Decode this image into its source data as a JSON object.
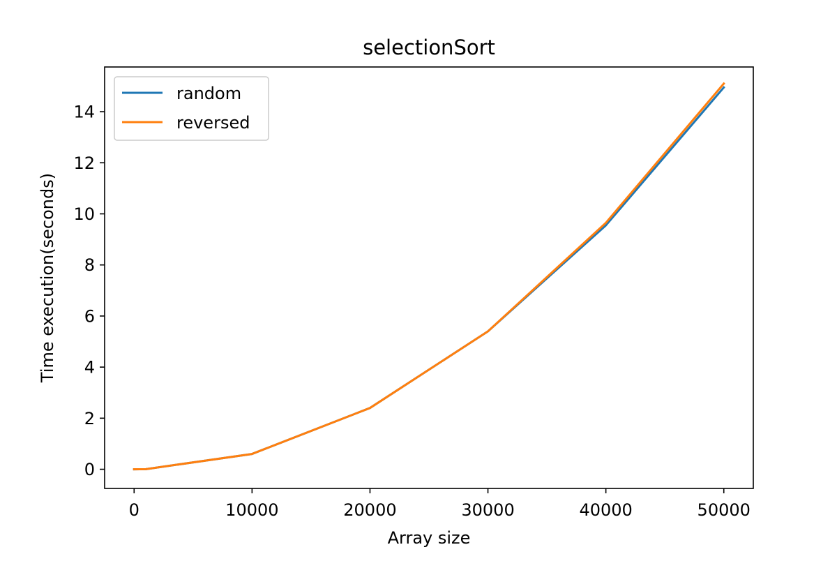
{
  "chart_data": {
    "type": "line",
    "title": "selectionSort",
    "xlabel": "Array size",
    "ylabel": "Time execution(seconds)",
    "xlim": [
      -2500,
      52500
    ],
    "ylim": [
      -0.75,
      15.75
    ],
    "xticks": [
      0,
      10000,
      20000,
      30000,
      40000,
      50000
    ],
    "yticks": [
      0,
      2,
      4,
      6,
      8,
      10,
      12,
      14
    ],
    "x": [
      0,
      1000,
      10000,
      20000,
      30000,
      40000,
      50000
    ],
    "series": [
      {
        "name": "random",
        "color": "#1f77b4",
        "values": [
          0.0,
          0.006,
          0.6,
          2.4,
          5.4,
          9.55,
          14.95
        ]
      },
      {
        "name": "reversed",
        "color": "#ff7f0e",
        "values": [
          0.0,
          0.006,
          0.6,
          2.4,
          5.4,
          9.65,
          15.1
        ]
      }
    ],
    "grid": false,
    "legend_position": "top-left"
  }
}
